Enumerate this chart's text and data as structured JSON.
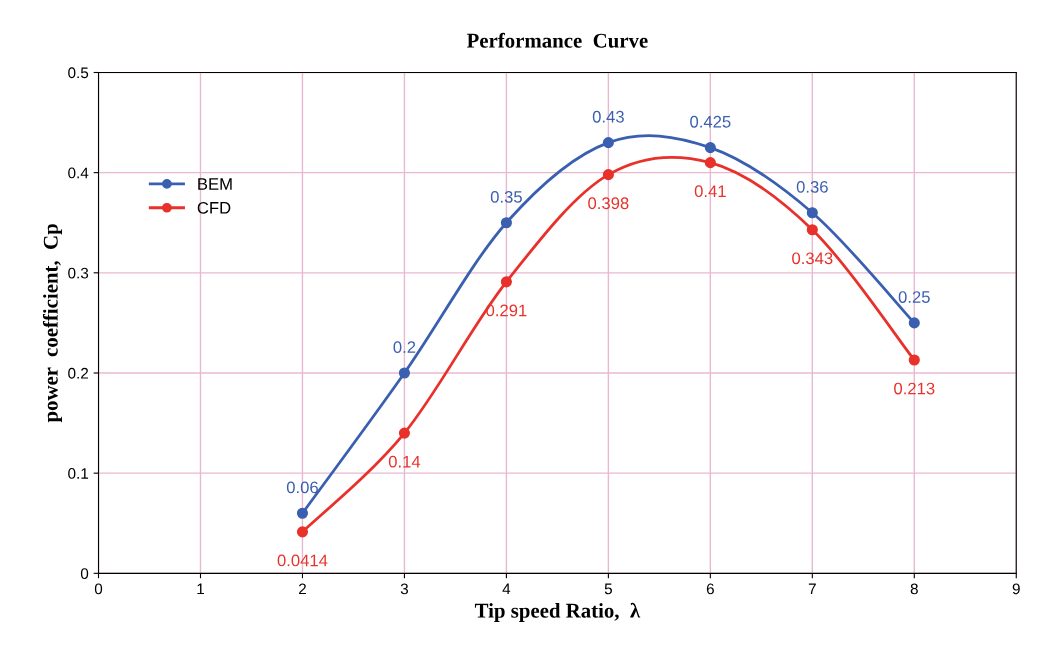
{
  "chart_data": {
    "type": "line",
    "title": "Performance  Curve",
    "xlabel": "Tip speed Ratio,  λ",
    "ylabel": "power  coefficient,  Cp",
    "x": [
      2,
      3,
      4,
      5,
      6,
      7,
      8
    ],
    "series": [
      {
        "name": "BEM",
        "color": "#3b5fb0",
        "values": [
          0.06,
          0.2,
          0.35,
          0.43,
          0.425,
          0.36,
          0.25
        ]
      },
      {
        "name": "CFD",
        "color": "#e8312a",
        "values": [
          0.0414,
          0.14,
          0.291,
          0.398,
          0.41,
          0.343,
          0.213
        ]
      }
    ],
    "xlim": [
      0,
      9
    ],
    "xticks": [
      0,
      1,
      2,
      3,
      4,
      5,
      6,
      7,
      8,
      9
    ],
    "ylim": [
      0,
      0.5
    ],
    "yticks": [
      0,
      0.1,
      0.2,
      0.3,
      0.4,
      0.5
    ],
    "grid": true,
    "legend": "top left",
    "marker": "circle",
    "line_style": "solid",
    "data_labels": true
  }
}
